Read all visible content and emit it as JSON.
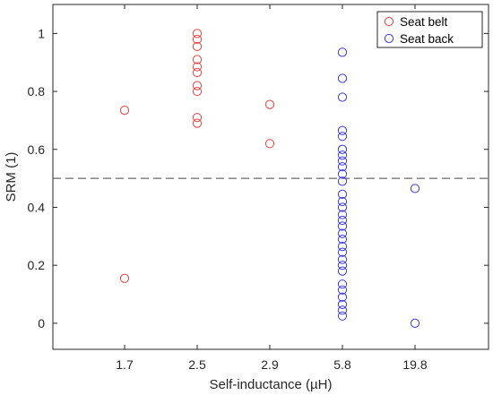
{
  "chart_data": {
    "type": "scatter",
    "xlabel": "Self-inductance (µH)",
    "ylabel": "SRM (1)",
    "categories": [
      "1.7",
      "2.5",
      "2.9",
      "5.8",
      "19.8"
    ],
    "ylim": [
      -0.09,
      1.1
    ],
    "yticks": [
      0,
      0.2,
      0.4,
      0.6,
      0.8,
      1
    ],
    "ytick_labels": [
      "0",
      "0.2",
      "0.4",
      "0.6",
      "0.8",
      "1"
    ],
    "grid": false,
    "legend_position": "top-right",
    "threshold_line": {
      "y": 0.5,
      "style": "dashed",
      "color": "#444444"
    },
    "series": [
      {
        "name": "Seat belt",
        "color": "#e8403a",
        "points": [
          {
            "x": "1.7",
            "y": 0.735
          },
          {
            "x": "1.7",
            "y": 0.155
          },
          {
            "x": "2.5",
            "y": 1.0
          },
          {
            "x": "2.5",
            "y": 0.98
          },
          {
            "x": "2.5",
            "y": 0.955
          },
          {
            "x": "2.5",
            "y": 0.91
          },
          {
            "x": "2.5",
            "y": 0.885
          },
          {
            "x": "2.5",
            "y": 0.865
          },
          {
            "x": "2.5",
            "y": 0.82
          },
          {
            "x": "2.5",
            "y": 0.8
          },
          {
            "x": "2.5",
            "y": 0.71
          },
          {
            "x": "2.5",
            "y": 0.69
          },
          {
            "x": "2.9",
            "y": 0.755
          },
          {
            "x": "2.9",
            "y": 0.62
          }
        ]
      },
      {
        "name": "Seat back",
        "color": "#3a3adf",
        "points": [
          {
            "x": "5.8",
            "y": 0.935
          },
          {
            "x": "5.8",
            "y": 0.845
          },
          {
            "x": "5.8",
            "y": 0.78
          },
          {
            "x": "5.8",
            "y": 0.665
          },
          {
            "x": "5.8",
            "y": 0.645
          },
          {
            "x": "5.8",
            "y": 0.6
          },
          {
            "x": "5.8",
            "y": 0.58
          },
          {
            "x": "5.8",
            "y": 0.56
          },
          {
            "x": "5.8",
            "y": 0.54
          },
          {
            "x": "5.8",
            "y": 0.515
          },
          {
            "x": "5.8",
            "y": 0.49
          },
          {
            "x": "5.8",
            "y": 0.445
          },
          {
            "x": "5.8",
            "y": 0.42
          },
          {
            "x": "5.8",
            "y": 0.4
          },
          {
            "x": "5.8",
            "y": 0.375
          },
          {
            "x": "5.8",
            "y": 0.355
          },
          {
            "x": "5.8",
            "y": 0.335
          },
          {
            "x": "5.8",
            "y": 0.31
          },
          {
            "x": "5.8",
            "y": 0.29
          },
          {
            "x": "5.8",
            "y": 0.265
          },
          {
            "x": "5.8",
            "y": 0.245
          },
          {
            "x": "5.8",
            "y": 0.22
          },
          {
            "x": "5.8",
            "y": 0.2
          },
          {
            "x": "5.8",
            "y": 0.18
          },
          {
            "x": "5.8",
            "y": 0.135
          },
          {
            "x": "5.8",
            "y": 0.115
          },
          {
            "x": "5.8",
            "y": 0.09
          },
          {
            "x": "5.8",
            "y": 0.065
          },
          {
            "x": "5.8",
            "y": 0.045
          },
          {
            "x": "5.8",
            "y": 0.025
          },
          {
            "x": "19.8",
            "y": 0.465
          },
          {
            "x": "19.8",
            "y": 0.0
          }
        ]
      }
    ]
  }
}
